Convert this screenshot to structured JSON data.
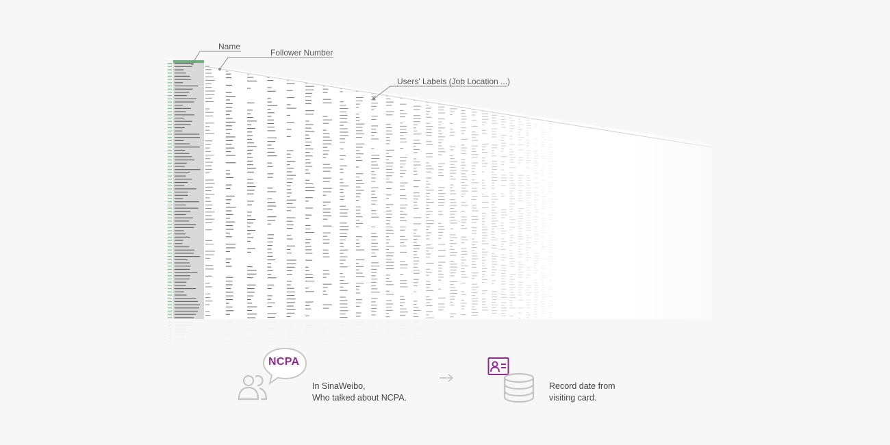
{
  "callouts": {
    "name": "Name",
    "follower_number": "Follower Number",
    "users_labels": "Users' Labels (Job Location ...)"
  },
  "flow": {
    "bubble_label": "NCPA",
    "source_line1": "In SinaWeibo,",
    "source_line2": "Who talked about NCPA.",
    "result_line1": "Record date from",
    "result_line2": "visiting card."
  },
  "icons": {
    "people": "people-icon",
    "speech": "speech-bubble-icon",
    "arrow": "right-arrow-icon",
    "card": "contact-card-icon",
    "database": "database-icon"
  },
  "colors": {
    "accent": "#8e2d8c",
    "sheet_green": "#6fae7c",
    "name_column": "#d9d9d9",
    "muted": "#c4c4c4"
  }
}
